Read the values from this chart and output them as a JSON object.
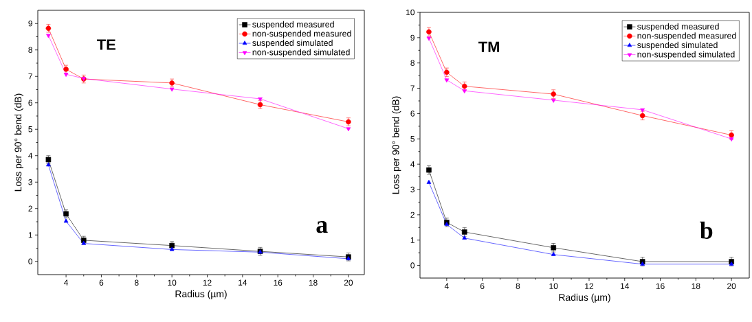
{
  "chart_data": [
    {
      "type": "line",
      "xlabel": "Radius (µm)",
      "ylabel": "Loss per 90° bend (dB)",
      "x": [
        3,
        4,
        5,
        10,
        15,
        20
      ],
      "xlim": [
        2.4,
        20.9
      ],
      "ylim": [
        -0.5,
        9.5
      ],
      "xticks": [
        4,
        6,
        8,
        10,
        12,
        14,
        16,
        18,
        20
      ],
      "yticks": [
        0,
        1,
        2,
        3,
        4,
        5,
        6,
        7,
        8,
        9
      ],
      "legend": "top right",
      "annotations": [
        "TE",
        "a"
      ],
      "series": [
        {
          "name": "suspended measured",
          "color": "#000000",
          "marker": "square",
          "values": [
            3.85,
            1.8,
            0.8,
            0.6,
            0.38,
            0.17
          ],
          "errors": [
            0.15,
            0.15,
            0.15,
            0.15,
            0.15,
            0.15
          ]
        },
        {
          "name": "non-suspended measured",
          "color": "#ff0000",
          "marker": "circle",
          "values": [
            8.82,
            7.27,
            6.9,
            6.75,
            5.93,
            5.28
          ],
          "errors": [
            0.15,
            0.15,
            0.15,
            0.15,
            0.15,
            0.15
          ]
        },
        {
          "name": "suspended simulated",
          "color": "#0000ff",
          "marker": "triangle",
          "values": [
            3.65,
            1.52,
            0.68,
            0.45,
            0.35,
            0.1
          ]
        },
        {
          "name": "non-suspended simulated",
          "color": "#ff00ff",
          "marker": "triangle-down",
          "values": [
            8.55,
            7.08,
            6.92,
            6.52,
            6.15,
            5.02
          ]
        }
      ]
    },
    {
      "type": "line",
      "xlabel": "Radius (µm)",
      "ylabel": "Loss per 90° bend (dB)",
      "x": [
        3,
        4,
        5,
        10,
        15,
        20
      ],
      "xlim": [
        2.5,
        21
      ],
      "ylim": [
        -0.5,
        10
      ],
      "xticks": [
        4,
        6,
        8,
        10,
        12,
        14,
        16,
        18,
        20
      ],
      "yticks": [
        0,
        1,
        2,
        3,
        4,
        5,
        6,
        7,
        8,
        9,
        10
      ],
      "legend": "top right",
      "annotations": [
        "TM",
        "b"
      ],
      "series": [
        {
          "name": "suspended measured",
          "color": "#000000",
          "marker": "square",
          "values": [
            3.77,
            1.7,
            1.32,
            0.7,
            0.15,
            0.15
          ],
          "errors": [
            0.17,
            0.17,
            0.17,
            0.17,
            0.17,
            0.17
          ]
        },
        {
          "name": "non-suspended measured",
          "color": "#ff0000",
          "marker": "circle",
          "values": [
            9.23,
            7.63,
            7.08,
            6.77,
            5.92,
            5.15
          ],
          "errors": [
            0.17,
            0.17,
            0.17,
            0.17,
            0.17,
            0.17
          ]
        },
        {
          "name": "suspended simulated",
          "color": "#0000ff",
          "marker": "triangle",
          "values": [
            3.28,
            1.62,
            1.08,
            0.43,
            0.05,
            0.05
          ]
        },
        {
          "name": "non-suspended simulated",
          "color": "#ff00ff",
          "marker": "triangle-down",
          "values": [
            8.98,
            7.33,
            6.9,
            6.53,
            6.15,
            5.0
          ]
        }
      ]
    }
  ]
}
